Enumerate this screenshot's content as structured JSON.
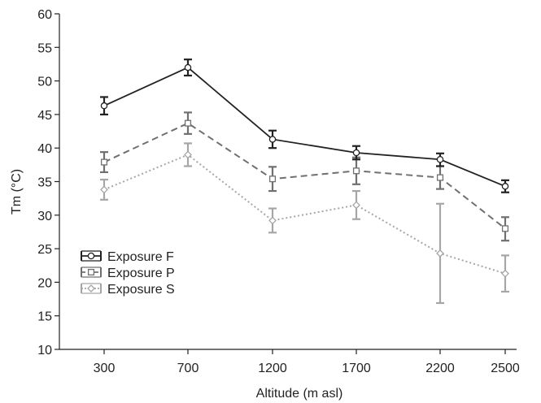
{
  "chart_data": {
    "type": "line",
    "title": "",
    "xlabel": "Altitude (m asl)",
    "ylabel": "Tm (°C)",
    "categories": [
      "300",
      "700",
      "1200",
      "1700",
      "2200",
      "2500"
    ],
    "ylim": [
      10,
      60
    ],
    "yticks": [
      10,
      15,
      20,
      25,
      30,
      35,
      40,
      45,
      50,
      55,
      60
    ],
    "grid": false,
    "legend_position": "lower-left",
    "series": [
      {
        "name": "Exposure F",
        "values": [
          46.3,
          52.0,
          41.3,
          39.3,
          38.3,
          34.3
        ],
        "err_low": [
          45.0,
          50.8,
          40.0,
          38.3,
          37.3,
          33.4
        ],
        "err_high": [
          47.6,
          53.2,
          42.6,
          40.3,
          39.2,
          35.2
        ],
        "color": "#222222",
        "line_style": "solid",
        "marker": "circle"
      },
      {
        "name": "Exposure P",
        "values": [
          37.9,
          43.7,
          35.4,
          36.6,
          35.6,
          28.0
        ],
        "err_low": [
          36.4,
          42.1,
          33.6,
          34.6,
          33.9,
          26.2
        ],
        "err_high": [
          39.4,
          45.3,
          37.2,
          38.6,
          37.3,
          29.7
        ],
        "color": "#707070",
        "line_style": "dashed",
        "marker": "square"
      },
      {
        "name": "Exposure S",
        "values": [
          33.8,
          39.0,
          29.2,
          31.5,
          24.3,
          21.3
        ],
        "err_low": [
          32.3,
          37.3,
          27.4,
          29.4,
          16.9,
          18.6
        ],
        "err_high": [
          35.3,
          40.7,
          31.0,
          33.6,
          31.7,
          24.0
        ],
        "color": "#a6a6a6",
        "line_style": "dotted",
        "marker": "diamond"
      }
    ]
  }
}
